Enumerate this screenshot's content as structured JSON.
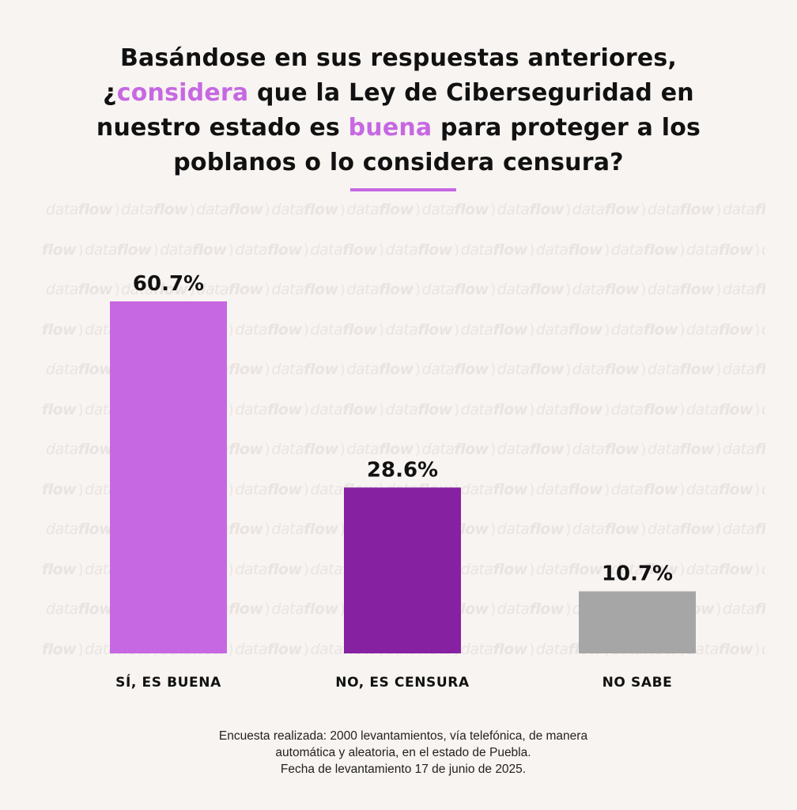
{
  "header": {
    "title_line1": "Basándose en sus respuestas anteriores,",
    "title_line2_pre": "¿",
    "title_line2_hl": "considera",
    "title_line2_post": " que la Ley de Ciberseguridad en",
    "title_line3_pre": "nuestro estado es ",
    "title_line3_hl": "buena",
    "title_line3_post": " para proteger a los",
    "title_line4": "poblanos o lo considera censura?"
  },
  "watermark": {
    "word_light": "data",
    "word_bold": "flow",
    "separator": ")"
  },
  "chart_data": {
    "type": "bar",
    "title": "Basándose en sus respuestas anteriores, ¿considera que la Ley de Ciberseguridad en nuestro estado es buena para proteger a los poblanos o lo considera censura?",
    "categories": [
      "SÍ, ES BUENA",
      "NO, ES CENSURA",
      "NO SABE"
    ],
    "values": [
      60.7,
      28.6,
      10.7
    ],
    "value_labels": [
      "60.7%",
      "28.6%",
      "10.7%"
    ],
    "colors": [
      "#c668e2",
      "#8621a2",
      "#a6a6a6"
    ],
    "ylim": [
      0,
      64
    ],
    "xlabel": "",
    "ylabel": "",
    "grid": false,
    "legend": "none"
  },
  "footnote": {
    "line1": "Encuesta realizada: 2000 levantamientos, vía telefónica, de manera",
    "line2": "automática y aleatoria, en el estado de Puebla.",
    "line3": "Fecha de levantamiento 17 de junio de 2025."
  }
}
